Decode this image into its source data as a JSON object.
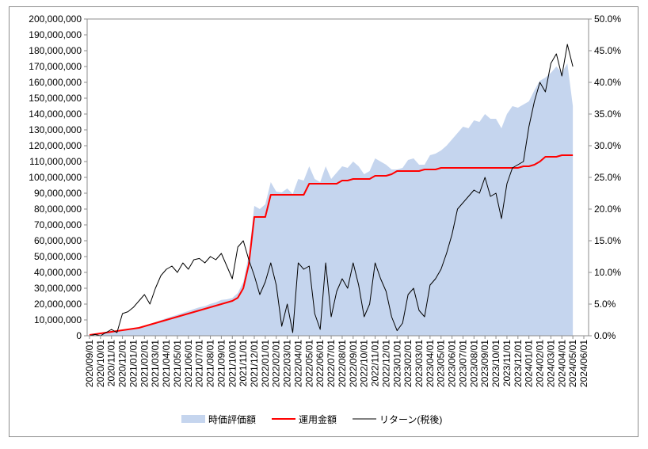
{
  "chart_data": {
    "type": "combo",
    "categories": [
      "2020/09/01",
      null,
      "2020/10/01",
      null,
      "2020/11/01",
      null,
      "2020/12/01",
      null,
      "2021/01/01",
      null,
      "2021/02/01",
      null,
      "2021/03/01",
      null,
      "2021/04/01",
      null,
      "2021/05/01",
      null,
      "2021/06/01",
      null,
      "2021/07/01",
      null,
      "2021/08/01",
      null,
      "2021/09/01",
      null,
      "2021/10/01",
      null,
      "2021/11/01",
      null,
      "2021/12/01",
      null,
      "2022/01/01",
      null,
      "2022/02/01",
      null,
      "2022/03/01",
      null,
      "2022/04/01",
      null,
      "2022/05/01",
      null,
      "2022/06/01",
      null,
      "2022/07/01",
      null,
      "2022/08/01",
      null,
      "2022/09/01",
      null,
      "2022/10/01",
      null,
      "2022/11/01",
      null,
      "2022/12/01",
      null,
      "2023/01/01",
      null,
      "2023/02/01",
      null,
      "2023/03/01",
      null,
      "2023/04/01",
      null,
      "2023/05/01",
      null,
      "2023/06/01",
      null,
      "2023/07/01",
      null,
      "2023/08/01",
      null,
      "2023/09/01",
      null,
      "2023/10/01",
      null,
      "2023/11/01",
      null,
      "2023/12/01",
      null,
      "2024/01/01",
      null,
      "2024/02/01",
      null,
      "2024/03/01",
      null,
      "2024/04/01",
      null,
      "2024/05/01",
      null,
      "2024/06/01"
    ],
    "series": [
      {
        "name": "時価評価額",
        "type": "area",
        "color": "#c5d5ee",
        "values": [
          500000,
          1000000,
          1500000,
          2000000,
          2500000,
          3100000,
          3700000,
          4200000,
          4800000,
          5300000,
          6400000,
          7500000,
          8600000,
          9900000,
          11100000,
          12200000,
          13300000,
          14500000,
          15600000,
          16900000,
          18000000,
          18700000,
          20100000,
          21100000,
          22600000,
          23000000,
          23900000,
          27000000,
          34000000,
          51000000,
          82000000,
          80000000,
          83000000,
          97000000,
          91000000,
          90500000,
          93000000,
          89500000,
          99000000,
          98000000,
          107000000,
          99000000,
          97000000,
          107000000,
          99000000,
          103000000,
          107000000,
          106000000,
          110000000,
          107000000,
          102000000,
          104000000,
          112000000,
          110000000,
          108000000,
          105000000,
          105000000,
          106000000,
          111000000,
          112000000,
          108000000,
          108000000,
          114000000,
          115000000,
          117000000,
          120000000,
          124000000,
          128000000,
          132000000,
          131000000,
          136000000,
          135000000,
          140000000,
          137000000,
          137000000,
          131000000,
          140000000,
          145000000,
          144000000,
          146000000,
          148000000,
          155000000,
          161000000,
          163000000,
          166000000,
          170000000,
          166000000,
          172000000,
          145000000,
          null,
          null
        ]
      },
      {
        "name": "運用金額",
        "type": "line",
        "color": "#ff0000",
        "values": [
          500000,
          1000000,
          1500000,
          2000000,
          2500000,
          3000000,
          3500000,
          4000000,
          4500000,
          5000000,
          6000000,
          7000000,
          8000000,
          9000000,
          10000000,
          11000000,
          12000000,
          13000000,
          14000000,
          15000000,
          16000000,
          17000000,
          18000000,
          19000000,
          20000000,
          21000000,
          22000000,
          24000000,
          30000000,
          45000000,
          75000000,
          75000000,
          75000000,
          89000000,
          89000000,
          89000000,
          89000000,
          89000000,
          89000000,
          89000000,
          96000000,
          96000000,
          96000000,
          96000000,
          96000000,
          96000000,
          98000000,
          98000000,
          99000000,
          99000000,
          99000000,
          99000000,
          101000000,
          101000000,
          101000000,
          102000000,
          104000000,
          104000000,
          104000000,
          104000000,
          104000000,
          105000000,
          105000000,
          105000000,
          106000000,
          106000000,
          106000000,
          106000000,
          106000000,
          106000000,
          106000000,
          106000000,
          106000000,
          106000000,
          106000000,
          106000000,
          106000000,
          106000000,
          106000000,
          107000000,
          107000000,
          108000000,
          110000000,
          113000000,
          113000000,
          113000000,
          114000000,
          114000000,
          114000000,
          null,
          null
        ]
      },
      {
        "name": "リターン(税後)",
        "type": "line",
        "axis": "y2",
        "color": "#000000",
        "values": [
          0,
          0.2,
          0,
          0.5,
          1.0,
          0.5,
          3.5,
          3.8,
          4.5,
          5.5,
          6.5,
          5.0,
          7.5,
          9.5,
          10.5,
          11.0,
          10.0,
          11.5,
          10.5,
          12.0,
          12.2,
          11.5,
          12.5,
          12.0,
          13.0,
          11.0,
          9.0,
          14.0,
          15.0,
          12.0,
          9.5,
          6.5,
          8.5,
          11.5,
          8.0,
          1.5,
          5.0,
          0.5,
          11.5,
          10.5,
          11.0,
          3.5,
          1.0,
          11.5,
          3.0,
          7.0,
          9.0,
          7.5,
          11.5,
          8.0,
          3.0,
          5.0,
          11.5,
          9.0,
          7.0,
          3.0,
          0.8,
          2.0,
          6.5,
          7.5,
          4.0,
          3.0,
          8.0,
          9.0,
          10.5,
          13.0,
          16.0,
          20.0,
          21.0,
          22.0,
          23.0,
          22.5,
          25.0,
          22.0,
          22.5,
          18.5,
          24.0,
          26.5,
          27.0,
          27.5,
          33.0,
          37.0,
          40.0,
          38.5,
          43.0,
          44.5,
          41.0,
          46.0,
          42.5,
          null,
          null
        ]
      }
    ],
    "ylim": [
      0,
      200000000
    ],
    "yticks": [
      {
        "value": 0,
        "label": "0"
      },
      {
        "value": 10000000,
        "label": "10,000,000"
      },
      {
        "value": 20000000,
        "label": "20,000,000"
      },
      {
        "value": 30000000,
        "label": "30,000,000"
      },
      {
        "value": 40000000,
        "label": "40,000,000"
      },
      {
        "value": 50000000,
        "label": "50,000,000"
      },
      {
        "value": 60000000,
        "label": "60,000,000"
      },
      {
        "value": 70000000,
        "label": "70,000,000"
      },
      {
        "value": 80000000,
        "label": "80,000,000"
      },
      {
        "value": 90000000,
        "label": "90,000,000"
      },
      {
        "value": 100000000,
        "label": "100,000,000"
      },
      {
        "value": 110000000,
        "label": "110,000,000"
      },
      {
        "value": 120000000,
        "label": "120,000,000"
      },
      {
        "value": 130000000,
        "label": "130,000,000"
      },
      {
        "value": 140000000,
        "label": "140,000,000"
      },
      {
        "value": 150000000,
        "label": "150,000,000"
      },
      {
        "value": 160000000,
        "label": "160,000,000"
      },
      {
        "value": 170000000,
        "label": "170,000,000"
      },
      {
        "value": 180000000,
        "label": "180,000,000"
      },
      {
        "value": 190000000,
        "label": "190,000,000"
      },
      {
        "value": 200000000,
        "label": "200,000,000"
      }
    ],
    "y2lim": [
      0,
      50
    ],
    "y2ticks": [
      {
        "value": 0,
        "label": "0.0%"
      },
      {
        "value": 5,
        "label": "5.0%"
      },
      {
        "value": 10,
        "label": "10.0%"
      },
      {
        "value": 15,
        "label": "15.0%"
      },
      {
        "value": 20,
        "label": "20.0%"
      },
      {
        "value": 25,
        "label": "25.0%"
      },
      {
        "value": 30,
        "label": "30.0%"
      },
      {
        "value": 35,
        "label": "35.0%"
      },
      {
        "value": 40,
        "label": "40.0%"
      },
      {
        "value": 45,
        "label": "45.0%"
      },
      {
        "value": 50,
        "label": "50.0%"
      }
    ],
    "legend": "bottom"
  }
}
